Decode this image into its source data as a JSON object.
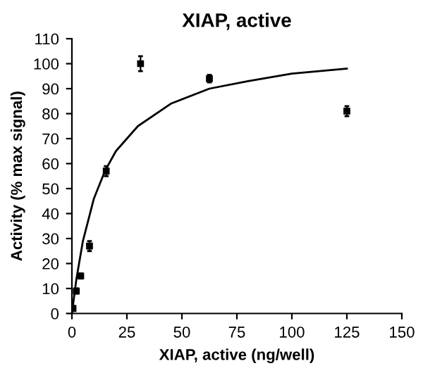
{
  "chart_data": {
    "type": "scatter",
    "title": "XIAP, active",
    "xlabel": "XIAP, active (ng/well)",
    "ylabel": "Activity (% max signal)",
    "xlim": [
      0,
      150
    ],
    "xticks": [
      0,
      25,
      50,
      75,
      100,
      125,
      150
    ],
    "ylim": [
      0,
      110
    ],
    "yticks": [
      0,
      10,
      20,
      30,
      40,
      50,
      60,
      70,
      80,
      90,
      100,
      110
    ],
    "grid": false,
    "series": [
      {
        "marker": "square",
        "color": "#000000",
        "x": [
          0.5,
          2,
          4,
          8,
          15.6,
          31.2,
          62.5,
          125
        ],
        "values": [
          2,
          9,
          15,
          27,
          57,
          100,
          94,
          81
        ],
        "errors": [
          1,
          1,
          1,
          2,
          2,
          3,
          1.5,
          2
        ]
      },
      {
        "type": "line",
        "color": "#000000",
        "x": [
          0,
          2,
          5,
          10,
          15,
          20,
          30,
          45,
          62.5,
          80,
          100,
          125
        ],
        "values": [
          0,
          13.5,
          29,
          46,
          57,
          65,
          75,
          84,
          90,
          93,
          96,
          98
        ]
      }
    ]
  }
}
